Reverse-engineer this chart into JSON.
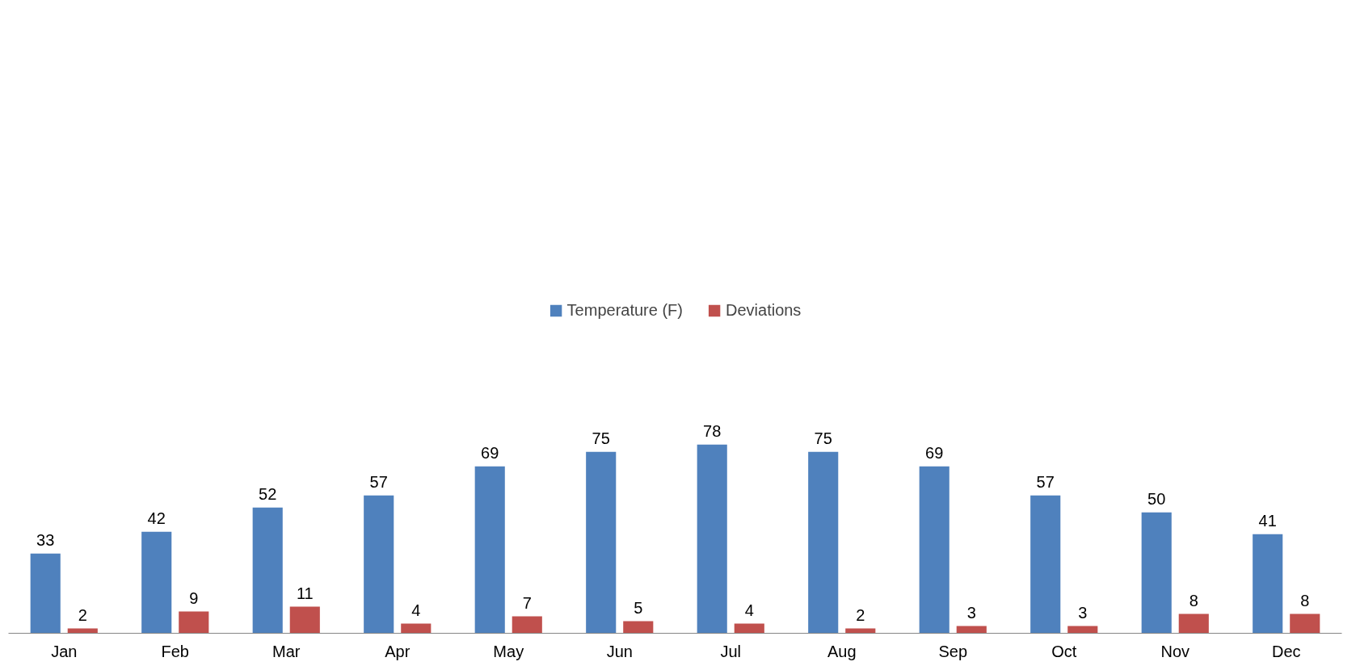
{
  "chart_data": {
    "type": "bar",
    "categories": [
      "Jan",
      "Feb",
      "Mar",
      "Apr",
      "May",
      "Jun",
      "Jul",
      "Aug",
      "Sep",
      "Oct",
      "Nov",
      "Dec"
    ],
    "series": [
      {
        "name": "Temperature (F)",
        "color": "#4f81bd",
        "values": [
          33,
          42,
          52,
          57,
          69,
          75,
          78,
          75,
          69,
          57,
          50,
          41
        ]
      },
      {
        "name": "Deviations",
        "color": "#c0504d",
        "values": [
          2,
          9,
          11,
          4,
          7,
          5,
          4,
          2,
          3,
          3,
          8,
          8
        ]
      }
    ],
    "data_labels": true,
    "grid": false,
    "legend": "top"
  }
}
